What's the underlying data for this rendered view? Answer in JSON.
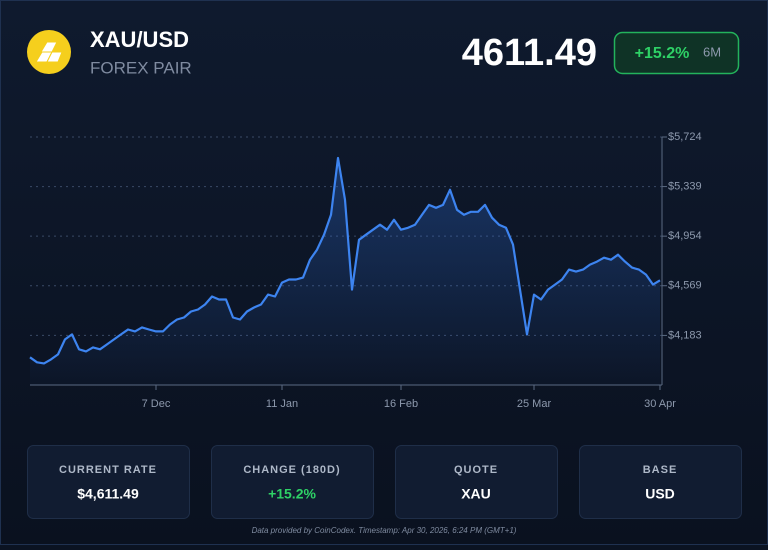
{
  "header": {
    "symbol": "XAU/USD",
    "subtitle": "FOREX PAIR",
    "price": "4611.49",
    "change": "+15.2%",
    "period": "6M"
  },
  "chart_data": {
    "type": "line",
    "color": "#3d84f0",
    "grid": true,
    "ylim": [
      3798,
      5724
    ],
    "yticks": [
      {
        "value": 4183,
        "label": "$4,183"
      },
      {
        "value": 4569,
        "label": "$4,569"
      },
      {
        "value": 4954,
        "label": "$4,954"
      },
      {
        "value": 5339,
        "label": "$5,339"
      },
      {
        "value": 5724,
        "label": "$5,724"
      }
    ],
    "categories": [
      null,
      null,
      null,
      null,
      null,
      null,
      null,
      null,
      null,
      null,
      null,
      null,
      null,
      null,
      null,
      null,
      null,
      null,
      "7 Dec",
      null,
      null,
      null,
      null,
      null,
      null,
      null,
      null,
      null,
      null,
      null,
      null,
      null,
      null,
      null,
      null,
      null,
      "11 Jan",
      null,
      null,
      null,
      null,
      null,
      null,
      null,
      null,
      null,
      null,
      null,
      null,
      null,
      null,
      null,
      null,
      "16 Feb",
      null,
      null,
      null,
      null,
      null,
      null,
      null,
      null,
      null,
      null,
      null,
      null,
      null,
      null,
      null,
      null,
      null,
      null,
      "25 Mar",
      null,
      null,
      null,
      null,
      null,
      null,
      null,
      null,
      null,
      null,
      null,
      null,
      null,
      null,
      null,
      null,
      null,
      "30 Apr"
    ],
    "values": [
      4013,
      3974,
      3966,
      3997,
      4036,
      4152,
      4191,
      4075,
      4059,
      4090,
      4075,
      4113,
      4152,
      4191,
      4229,
      4214,
      4245,
      4229,
      4214,
      4214,
      4268,
      4307,
      4322,
      4369,
      4384,
      4423,
      4485,
      4462,
      4462,
      4322,
      4307,
      4369,
      4400,
      4423,
      4500,
      4485,
      4593,
      4617,
      4617,
      4632,
      4771,
      4849,
      4965,
      5120,
      5561,
      5236,
      4539,
      4926,
      4965,
      5004,
      5043,
      5004,
      5081,
      5004,
      5019,
      5043,
      5120,
      5197,
      5174,
      5197,
      5314,
      5159,
      5120,
      5143,
      5143,
      5197,
      5097,
      5043,
      5019,
      4888,
      4539,
      4191,
      4500,
      4462,
      4539,
      4578,
      4617,
      4694,
      4679,
      4694,
      4733,
      4756,
      4787,
      4771,
      4810,
      4756,
      4710,
      4694,
      4655,
      4578,
      4611.49
    ]
  },
  "cards": [
    {
      "label": "CURRENT RATE",
      "value": "$4,611.49"
    },
    {
      "label": "CHANGE (180D)",
      "value": "+15.2%"
    },
    {
      "label": "QUOTE",
      "value": "XAU"
    },
    {
      "label": "BASE",
      "value": "USD"
    }
  ],
  "footer": "Data provided by CoinCodex. Timestamp: Apr 30, 2026, 6:24 PM (GMT+1)"
}
